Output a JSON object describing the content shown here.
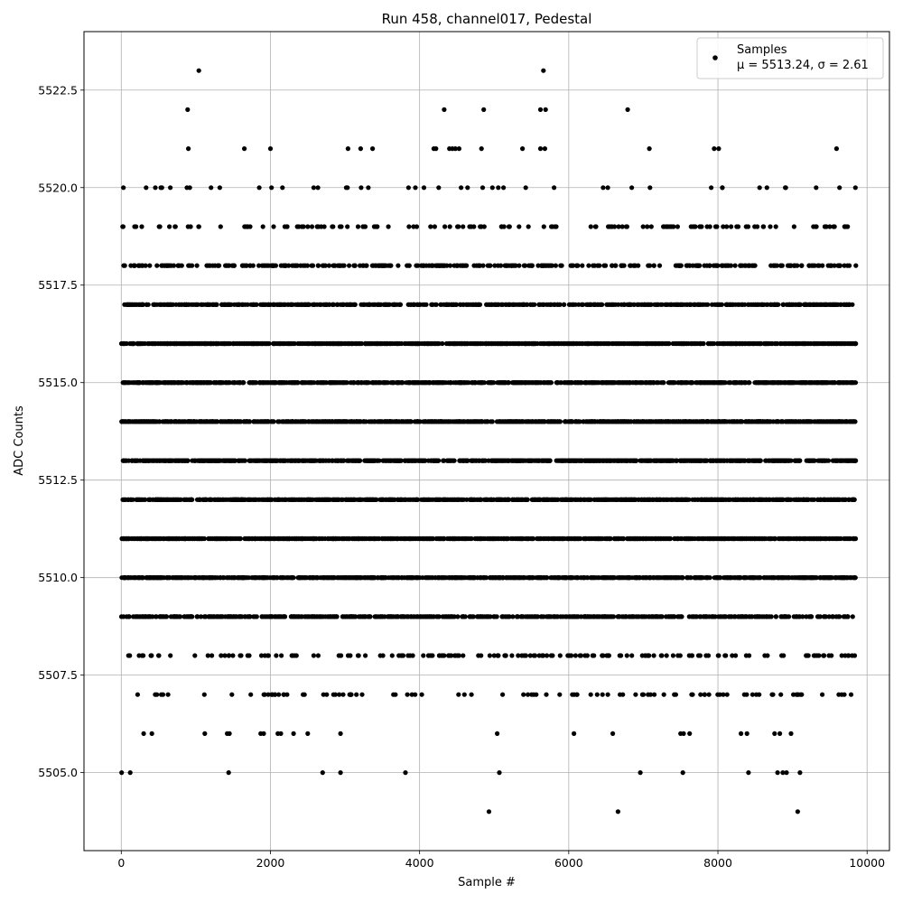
{
  "chart_data": {
    "type": "scatter",
    "title": "Run 458, channel017, Pedestal",
    "xlabel": "Sample #",
    "ylabel": "ADC Counts",
    "xlim": [
      -500,
      10300
    ],
    "ylim": [
      5503.0,
      5524.0
    ],
    "x_ticks": [
      0,
      2000,
      4000,
      6000,
      8000,
      10000
    ],
    "x_tick_labels": [
      "0",
      "2000",
      "4000",
      "6000",
      "8000",
      "10000"
    ],
    "y_ticks": [
      5505.0,
      5507.5,
      5510.0,
      5512.5,
      5515.0,
      5517.5,
      5520.0,
      5522.5
    ],
    "y_tick_labels": [
      "5505.0",
      "5507.5",
      "5510.0",
      "5512.5",
      "5515.0",
      "5517.5",
      "5520.0",
      "5522.5"
    ],
    "grid": true,
    "legend_position": "top-right",
    "series": [
      {
        "name": "Samples",
        "annotation": "μ = 5513.24, σ = 2.61",
        "color": "#000000",
        "marker": "circle",
        "x_range": [
          0,
          9850
        ],
        "levels": [
          {
            "y": 5516,
            "count": 1000
          },
          {
            "y": 5515,
            "count": 1000
          },
          {
            "y": 5514,
            "count": 1000
          },
          {
            "y": 5513,
            "count": 1000
          },
          {
            "y": 5512,
            "count": 1000
          },
          {
            "y": 5511,
            "count": 1000
          },
          {
            "y": 5510,
            "count": 1000
          },
          {
            "y": 5517,
            "count": 650
          },
          {
            "y": 5509,
            "count": 600
          },
          {
            "y": 5518,
            "count": 350
          },
          {
            "y": 5508,
            "count": 170
          },
          {
            "y": 5519,
            "count": 140
          },
          {
            "y": 5507,
            "count": 100
          },
          {
            "y": 5520,
            "count": 45
          }
        ],
        "points": [
          {
            "x": 5,
            "y": 5505
          },
          {
            "x": 120,
            "y": 5505
          },
          {
            "x": 1440,
            "y": 5505
          },
          {
            "x": 2700,
            "y": 5505
          },
          {
            "x": 2940,
            "y": 5505
          },
          {
            "x": 3810,
            "y": 5505
          },
          {
            "x": 5070,
            "y": 5505
          },
          {
            "x": 6960,
            "y": 5505
          },
          {
            "x": 7530,
            "y": 5505
          },
          {
            "x": 8410,
            "y": 5505
          },
          {
            "x": 8800,
            "y": 5505
          },
          {
            "x": 8870,
            "y": 5505
          },
          {
            "x": 8920,
            "y": 5505
          },
          {
            "x": 9100,
            "y": 5505
          },
          {
            "x": 4930,
            "y": 5504
          },
          {
            "x": 6660,
            "y": 5504
          },
          {
            "x": 9070,
            "y": 5504
          },
          {
            "x": 300,
            "y": 5506
          },
          {
            "x": 410,
            "y": 5506
          },
          {
            "x": 1120,
            "y": 5506
          },
          {
            "x": 1420,
            "y": 5506
          },
          {
            "x": 1450,
            "y": 5506
          },
          {
            "x": 1870,
            "y": 5506
          },
          {
            "x": 1910,
            "y": 5506
          },
          {
            "x": 2100,
            "y": 5506
          },
          {
            "x": 2140,
            "y": 5506
          },
          {
            "x": 2310,
            "y": 5506
          },
          {
            "x": 2500,
            "y": 5506
          },
          {
            "x": 2940,
            "y": 5506
          },
          {
            "x": 5040,
            "y": 5506
          },
          {
            "x": 6070,
            "y": 5506
          },
          {
            "x": 6590,
            "y": 5506
          },
          {
            "x": 7500,
            "y": 5506
          },
          {
            "x": 7540,
            "y": 5506
          },
          {
            "x": 7620,
            "y": 5506
          },
          {
            "x": 8310,
            "y": 5506
          },
          {
            "x": 8390,
            "y": 5506
          },
          {
            "x": 8760,
            "y": 5506
          },
          {
            "x": 8830,
            "y": 5506
          },
          {
            "x": 8980,
            "y": 5506
          },
          {
            "x": 900,
            "y": 5521
          },
          {
            "x": 1650,
            "y": 5521
          },
          {
            "x": 2000,
            "y": 5521
          },
          {
            "x": 3040,
            "y": 5521
          },
          {
            "x": 3210,
            "y": 5521
          },
          {
            "x": 3370,
            "y": 5521
          },
          {
            "x": 4190,
            "y": 5521
          },
          {
            "x": 4220,
            "y": 5521
          },
          {
            "x": 4400,
            "y": 5521
          },
          {
            "x": 4440,
            "y": 5521
          },
          {
            "x": 4480,
            "y": 5521
          },
          {
            "x": 4530,
            "y": 5521
          },
          {
            "x": 4830,
            "y": 5521
          },
          {
            "x": 5380,
            "y": 5521
          },
          {
            "x": 5620,
            "y": 5521
          },
          {
            "x": 5680,
            "y": 5521
          },
          {
            "x": 7080,
            "y": 5521
          },
          {
            "x": 7950,
            "y": 5521
          },
          {
            "x": 8010,
            "y": 5521
          },
          {
            "x": 9590,
            "y": 5521
          },
          {
            "x": 890,
            "y": 5522
          },
          {
            "x": 4330,
            "y": 5522
          },
          {
            "x": 4860,
            "y": 5522
          },
          {
            "x": 5620,
            "y": 5522
          },
          {
            "x": 5690,
            "y": 5522
          },
          {
            "x": 6790,
            "y": 5522
          },
          {
            "x": 1040,
            "y": 5523
          },
          {
            "x": 5660,
            "y": 5523
          }
        ]
      }
    ]
  }
}
